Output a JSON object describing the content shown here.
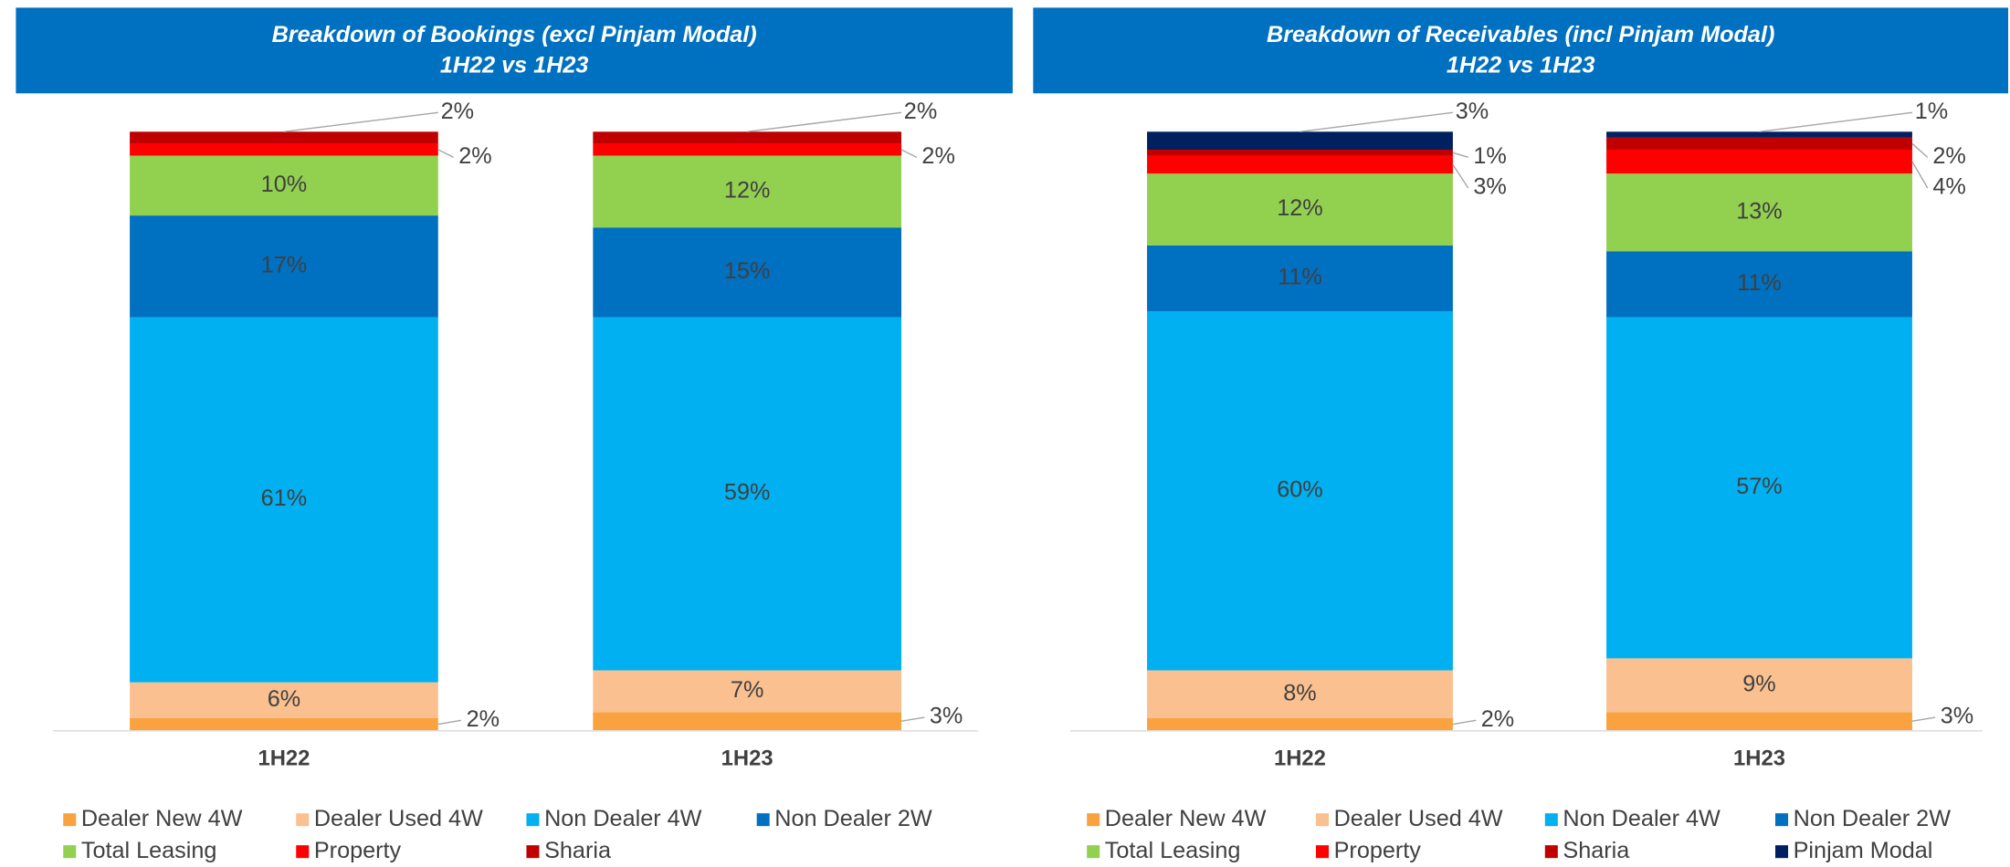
{
  "chart_data": [
    {
      "type": "stacked_bar",
      "title": "Breakdown of Bookings (excl Pinjam Modal)",
      "subtitle": "1H22 vs 1H23",
      "categories": [
        "1H22",
        "1H23"
      ],
      "ylim": [
        0,
        100
      ],
      "series": [
        {
          "name": "Dealer New 4W",
          "color": "#F9A23F",
          "values": [
            2,
            3
          ],
          "value_labels": [
            "2%",
            "3%"
          ]
        },
        {
          "name": "Dealer Used 4W",
          "color": "#FAC090",
          "values": [
            6,
            7
          ],
          "value_labels": [
            "6%",
            "7%"
          ]
        },
        {
          "name": "Non Dealer 4W",
          "color": "#00B0F0",
          "values": [
            61,
            59
          ],
          "value_labels": [
            "61%",
            "59%"
          ]
        },
        {
          "name": "Non Dealer 2W",
          "color": "#0070C0",
          "values": [
            17,
            15
          ],
          "value_labels": [
            "17%",
            "15%"
          ]
        },
        {
          "name": "Total Leasing",
          "color": "#92D050",
          "values": [
            10,
            12
          ],
          "value_labels": [
            "10%",
            "12%"
          ]
        },
        {
          "name": "Property",
          "color": "#FF0000",
          "values": [
            2,
            2
          ],
          "value_labels": [
            "2%",
            "2%"
          ]
        },
        {
          "name": "Sharia",
          "color": "#C00000",
          "values": [
            2,
            2
          ],
          "value_labels": [
            "2%",
            "2%"
          ]
        }
      ]
    },
    {
      "type": "stacked_bar",
      "title": "Breakdown of Receivables (incl Pinjam Modal)",
      "subtitle": "1H22 vs 1H23",
      "categories": [
        "1H22",
        "1H23"
      ],
      "ylim": [
        0,
        100
      ],
      "series": [
        {
          "name": "Dealer New 4W",
          "color": "#F9A23F",
          "values": [
            2,
            3
          ],
          "value_labels": [
            "2%",
            "3%"
          ]
        },
        {
          "name": "Dealer Used 4W",
          "color": "#FAC090",
          "values": [
            8,
            9
          ],
          "value_labels": [
            "8%",
            "9%"
          ]
        },
        {
          "name": "Non Dealer 4W",
          "color": "#00B0F0",
          "values": [
            60,
            57
          ],
          "value_labels": [
            "60%",
            "57%"
          ]
        },
        {
          "name": "Non Dealer 2W",
          "color": "#0070C0",
          "values": [
            11,
            11
          ],
          "value_labels": [
            "11%",
            "11%"
          ]
        },
        {
          "name": "Total Leasing",
          "color": "#92D050",
          "values": [
            12,
            13
          ],
          "value_labels": [
            "12%",
            "13%"
          ]
        },
        {
          "name": "Property",
          "color": "#FF0000",
          "values": [
            3,
            4
          ],
          "value_labels": [
            "3%",
            "4%"
          ]
        },
        {
          "name": "Sharia",
          "color": "#C00000",
          "values": [
            1,
            2
          ],
          "value_labels": [
            "1%",
            "2%"
          ]
        },
        {
          "name": "Pinjam Modal",
          "color": "#002060",
          "values": [
            3,
            1
          ],
          "value_labels": [
            "3%",
            "1%"
          ]
        }
      ]
    }
  ]
}
